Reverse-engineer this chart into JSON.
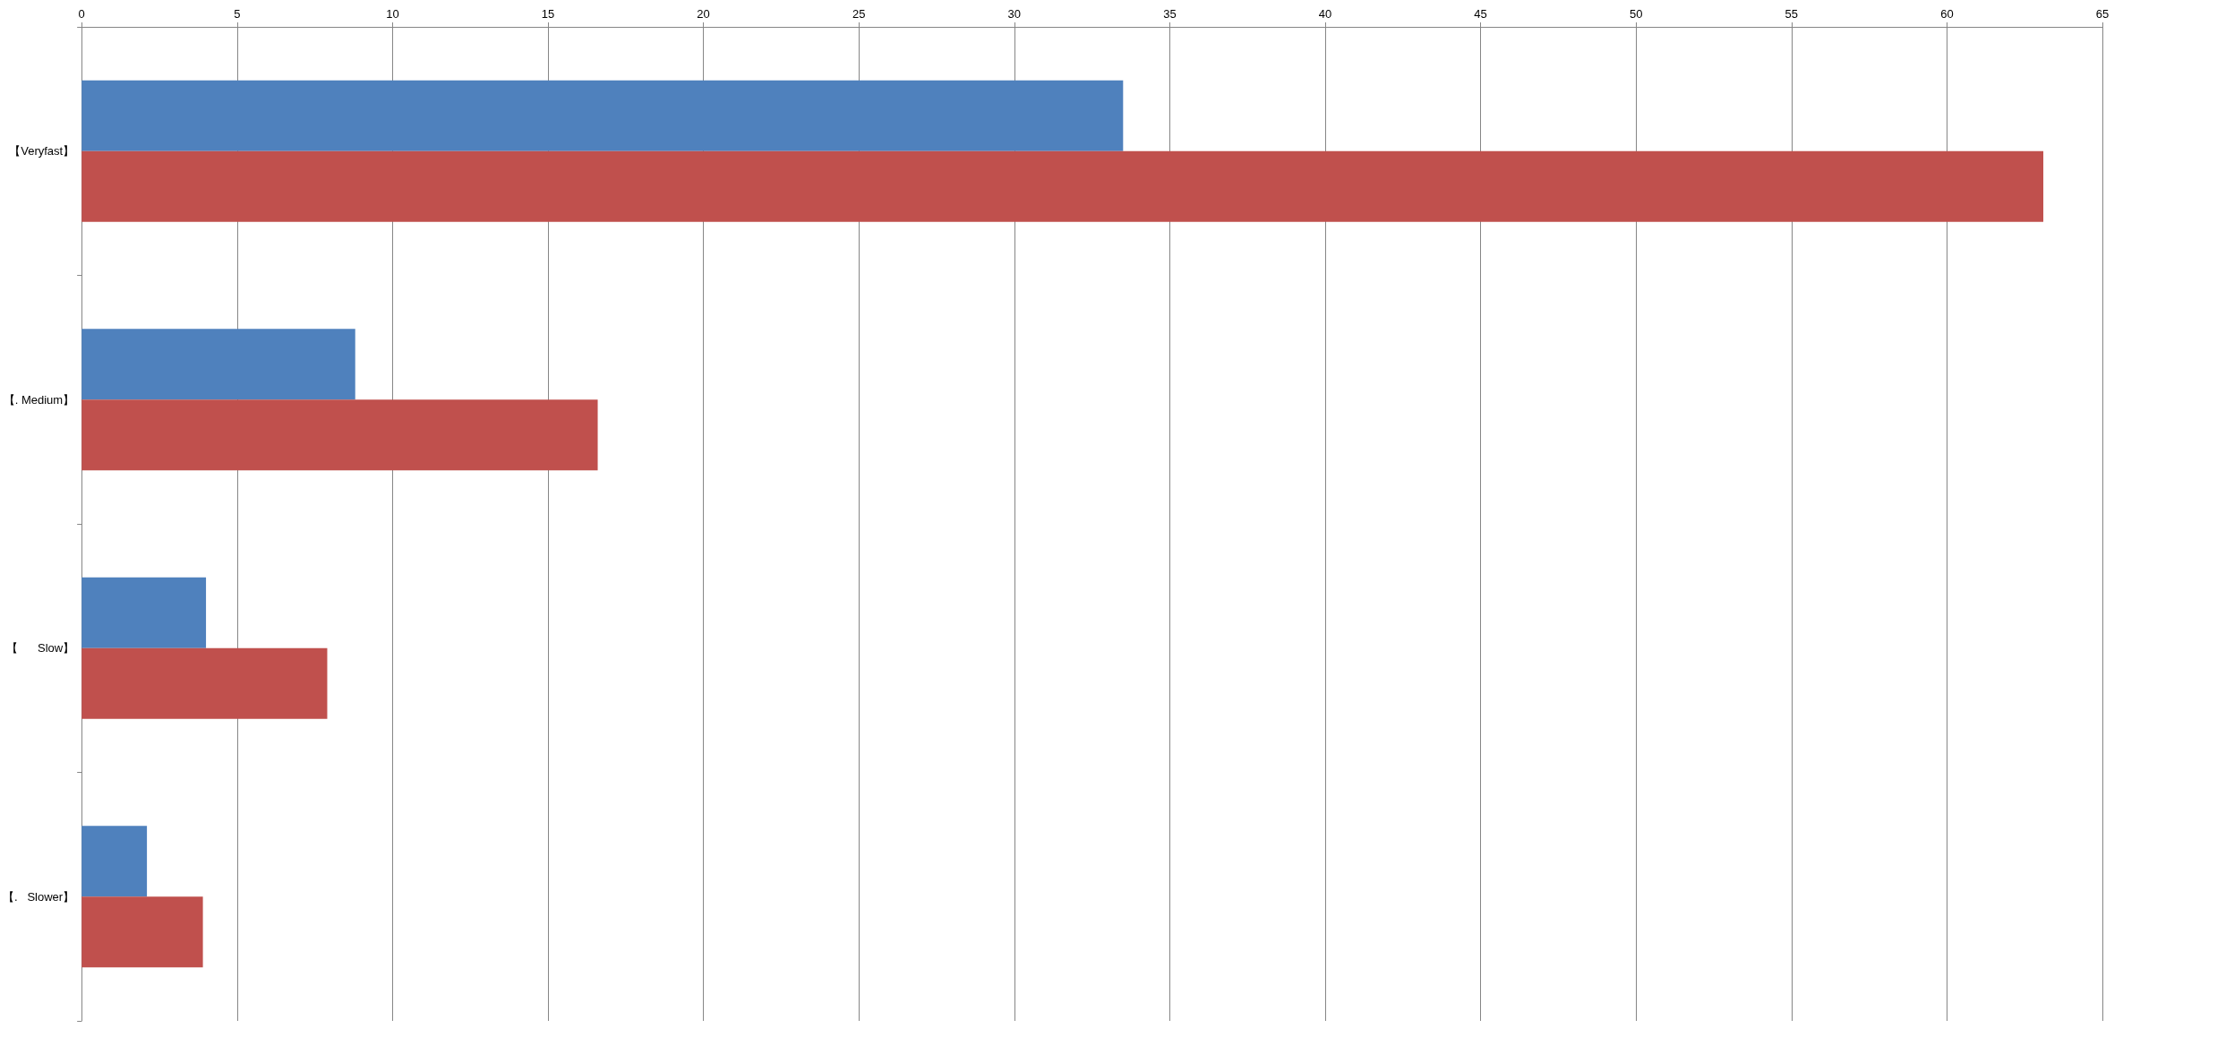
{
  "chart_data": {
    "type": "bar",
    "orientation": "horizontal",
    "categories": [
      "【Veryfast】",
      "【. Medium】",
      "【      Slow】",
      "【.   Slower】"
    ],
    "series": [
      {
        "color": "#4f81bd",
        "values": [
          33.5,
          8.8,
          4.0,
          2.1
        ]
      },
      {
        "color": "#c0504d",
        "values": [
          63.1,
          16.6,
          7.9,
          3.9
        ]
      }
    ],
    "xlim": [
      0,
      65
    ],
    "xticks": [
      0,
      5,
      10,
      15,
      20,
      25,
      30,
      35,
      40,
      45,
      50,
      55,
      60,
      65
    ],
    "grid": "x"
  }
}
